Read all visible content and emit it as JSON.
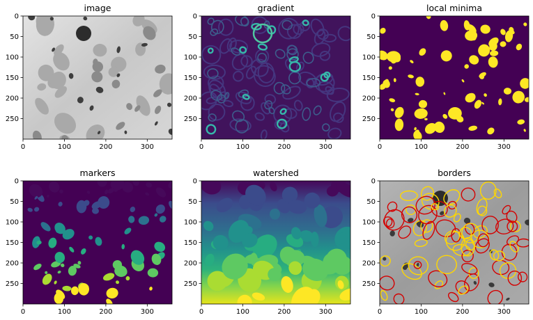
{
  "figure": {
    "background": "#ffffff",
    "tick_color": "#000000",
    "frame_color": "#000000"
  },
  "chart_data": [
    {
      "type": "heatmap",
      "title": "image",
      "colormap": "gray",
      "xticks": [
        0,
        100,
        200,
        300
      ],
      "yticks": [
        0,
        50,
        100,
        150,
        200,
        250
      ],
      "xlim": [
        0,
        360
      ],
      "ylim": [
        300,
        0
      ],
      "content": "grayscale microscopy image of cells with darker nuclei"
    },
    {
      "type": "heatmap",
      "title": "gradient",
      "colormap": "viridis",
      "xticks": [
        0,
        100,
        200,
        300
      ],
      "yticks": [
        0,
        50,
        100,
        150,
        200,
        250
      ],
      "xlim": [
        0,
        360
      ],
      "ylim": [
        300,
        0
      ],
      "content": "gradient magnitude with bright cyan rings around nuclei"
    },
    {
      "type": "heatmap",
      "title": "local minima",
      "colormap": "viridis-binary",
      "xticks": [
        0,
        100,
        200,
        300
      ],
      "yticks": [
        0,
        50,
        100,
        150,
        200,
        250
      ],
      "xlim": [
        0,
        360
      ],
      "ylim": [
        300,
        0
      ],
      "content": "binary mask: yellow regions of local minima on dark purple"
    },
    {
      "type": "heatmap",
      "title": "markers",
      "colormap": "viridis",
      "xticks": [
        0,
        100,
        200,
        300
      ],
      "yticks": [
        0,
        50,
        100,
        150,
        200,
        250
      ],
      "xlim": [
        0,
        360
      ],
      "ylim": [
        300,
        0
      ],
      "content": "labelled marker regions colored from purple (top) to yellow (bottom)"
    },
    {
      "type": "heatmap",
      "title": "watershed",
      "colormap": "viridis",
      "xticks": [
        0,
        100,
        200,
        300
      ],
      "yticks": [
        0,
        50,
        100,
        150,
        200,
        250
      ],
      "xlim": [
        0,
        360
      ],
      "ylim": [
        300,
        0
      ],
      "content": "watershed label map filling the image, purple at top to yellow at bottom"
    },
    {
      "type": "heatmap",
      "title": "borders",
      "colormap": "gray+red-yellow outlines",
      "xticks": [
        0,
        100,
        200,
        300
      ],
      "yticks": [
        0,
        50,
        100,
        150,
        200,
        250
      ],
      "xlim": [
        0,
        360
      ],
      "ylim": [
        300,
        0
      ],
      "content": "grayscale image with red/yellow watershed boundaries overlaid"
    }
  ]
}
